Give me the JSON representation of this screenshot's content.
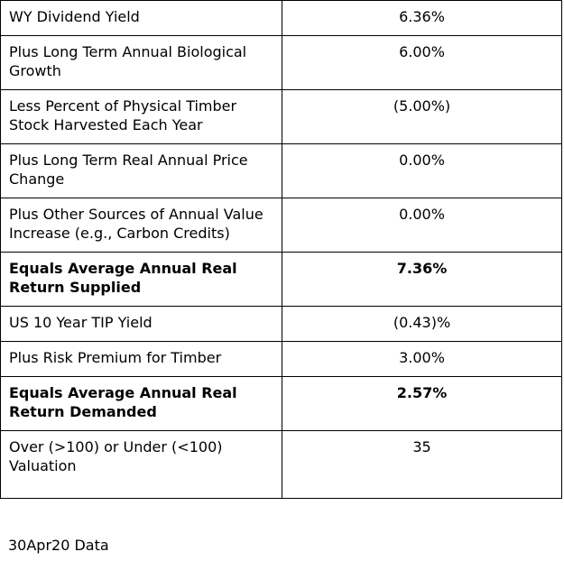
{
  "table": {
    "rows": [
      {
        "label": "WY Dividend Yield",
        "value": "6.36%",
        "bold": false
      },
      {
        "label": "Plus Long Term Annual Biological Growth",
        "value": "6.00%",
        "bold": false
      },
      {
        "label": "Less Percent of Physical Timber Stock Harvested Each Year",
        "value": "(5.00%)",
        "bold": false
      },
      {
        "label": "Plus Long Term Real Annual Price Change",
        "value": "0.00%",
        "bold": false
      },
      {
        "label": "Plus Other Sources of Annual Value Increase (e.g., Carbon Credits)",
        "value": "0.00%",
        "bold": false
      },
      {
        "label": "Equals Average Annual Real Return Supplied",
        "value": "7.36%",
        "bold": true
      },
      {
        "label": "US 10 Year TIP Yield",
        "value": "(0.43)%",
        "bold": false
      },
      {
        "label": "Plus Risk Premium for Timber",
        "value": "3.00%",
        "bold": false
      },
      {
        "label": "Equals Average Annual Real Return Demanded",
        "value": "2.57%",
        "bold": true
      },
      {
        "label": "Over (>100) or Under (<100) Valuation",
        "value": "35",
        "bold": false
      }
    ]
  },
  "footnote": "30Apr20 Data"
}
